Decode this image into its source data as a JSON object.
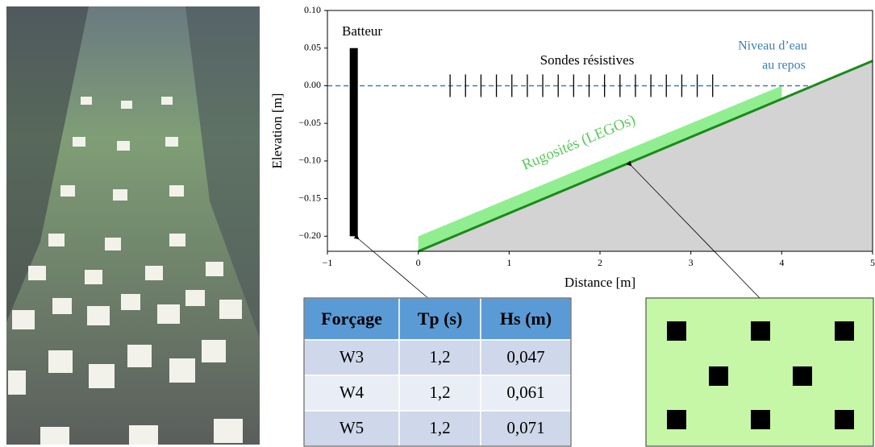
{
  "chart_data": {
    "type": "line",
    "xlabel": "Distance [m]",
    "ylabel": "Elevation [m]",
    "xlim": [
      -1,
      5
    ],
    "ylim": [
      -0.22,
      0.1
    ],
    "xticks": [
      {
        "value": -1,
        "label": "−1"
      },
      0,
      1,
      2,
      3,
      4,
      5
    ],
    "yticks": [
      {
        "value": -0.2,
        "label": "−0.20"
      },
      {
        "value": -0.15,
        "label": "−0.15"
      },
      {
        "value": -0.1,
        "label": "−0.10"
      },
      {
        "value": -0.05,
        "label": "−0.05"
      },
      {
        "value": 0,
        "label": "0.00"
      },
      {
        "value": 0.05,
        "label": "0.05"
      },
      {
        "value": 0.1,
        "label": "0.10"
      }
    ],
    "wavemaker": {
      "label": "Batteur",
      "x": -0.71,
      "bottom": -0.2,
      "top": 0.05,
      "color": "#000000"
    },
    "water": {
      "label": [
        "Niveau d’eau",
        "au repos"
      ],
      "x": [
        -1,
        4.35
      ],
      "y": [
        0,
        0
      ],
      "color": "#3a7fb5"
    },
    "probes": {
      "label": "Sondes résistives",
      "y": 0,
      "x": [
        0.35,
        0.52,
        0.69,
        0.86,
        1.03,
        1.2,
        1.37,
        1.54,
        1.71,
        1.88,
        2.05,
        2.22,
        2.39,
        2.56,
        2.73,
        2.9,
        3.07,
        3.24
      ],
      "color": "#000000"
    },
    "slope": {
      "x": [
        0,
        5
      ],
      "y": [
        -0.22,
        0.033
      ],
      "color": "#1a8a1a",
      "fill": "#d3d3d3"
    },
    "roughness": {
      "label": "Rugosités (LEGOs)",
      "x": [
        0,
        4
      ],
      "y": [
        -0.2,
        0.0
      ],
      "color": "#90ee90",
      "text_color": "#5cc85c"
    }
  },
  "table": {
    "header": [
      "Forçage",
      "Tp (s)",
      "Hs (m)"
    ],
    "rows": [
      [
        "W3",
        "1,2",
        "0,047"
      ],
      [
        "W4",
        "1,2",
        "0,061"
      ],
      [
        "W5",
        "1,2",
        "0,071"
      ]
    ]
  }
}
